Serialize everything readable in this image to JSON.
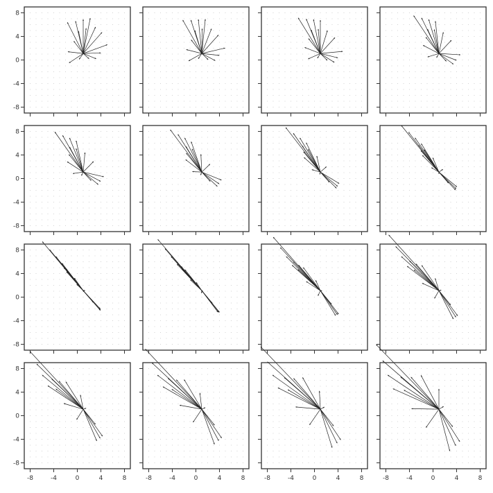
{
  "chart_data": {
    "type": "quiver-grid",
    "rows": 4,
    "cols": 4,
    "xlim": [
      -9,
      9
    ],
    "ylim": [
      -9,
      9
    ],
    "xticks": [
      -8,
      -4,
      0,
      4,
      8
    ],
    "yticks": [
      -8,
      -4,
      0,
      4,
      8
    ],
    "xtick_labels": [
      "-8",
      "-4",
      "0",
      "4",
      "8"
    ],
    "ytick_labels": [
      "-8",
      "-4",
      "0",
      "4",
      "8"
    ],
    "grid_dots": true,
    "title": "",
    "xlabel": "",
    "ylabel": "",
    "origin": [
      1.0,
      1.0
    ],
    "arrow_color": "#222222",
    "frame_color": "#333333",
    "grid_color": "#c8c8c8",
    "shear_x_per_panel": -0.1,
    "shear_y_per_panel": -0.14,
    "panels": [
      {
        "index": 1
      },
      {
        "index": 2
      },
      {
        "index": 3
      },
      {
        "index": 4
      },
      {
        "index": 5
      },
      {
        "index": 6
      },
      {
        "index": 7
      },
      {
        "index": 8
      },
      {
        "index": 9
      },
      {
        "index": 10
      },
      {
        "index": 11
      },
      {
        "index": 12
      },
      {
        "index": 13
      },
      {
        "index": 14
      },
      {
        "index": 15
      },
      {
        "index": 16
      }
    ],
    "base_vectors": [
      [
        1.0,
        1.1,
        -2.7,
        5.3
      ],
      [
        1.0,
        1.1,
        -1.3,
        5.5
      ],
      [
        1.0,
        1.1,
        0.0,
        5.8
      ],
      [
        1.0,
        1.1,
        1.2,
        6.0
      ],
      [
        1.0,
        1.1,
        2.1,
        4.5
      ],
      [
        1.0,
        1.1,
        3.2,
        3.6
      ],
      [
        1.0,
        1.1,
        4.1,
        1.5
      ],
      [
        1.0,
        1.1,
        3.0,
        0.1
      ],
      [
        1.0,
        1.1,
        2.2,
        -0.9
      ],
      [
        1.0,
        1.1,
        1.0,
        -0.9
      ],
      [
        1.0,
        1.1,
        -0.7,
        -1.0
      ],
      [
        1.0,
        1.1,
        -2.4,
        -1.6
      ],
      [
        1.0,
        1.1,
        -2.6,
        0.3
      ],
      [
        1.0,
        1.1,
        -1.6,
        2.1
      ],
      [
        1.0,
        1.1,
        -0.8,
        3.8
      ],
      [
        1.0,
        1.1,
        0.5,
        4.3
      ]
    ]
  }
}
